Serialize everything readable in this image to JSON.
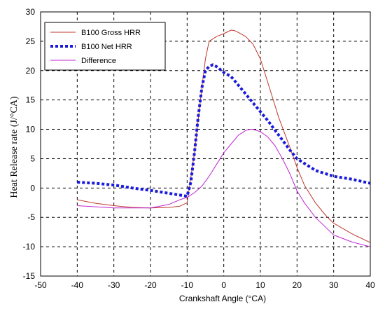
{
  "chart_data": {
    "type": "line",
    "title": "",
    "xlabel": "Crankshaft Angle  (°CA)",
    "ylabel": "Heat Release rate (J/°CA)",
    "xlim": [
      -50,
      40
    ],
    "ylim": [
      -15,
      30
    ],
    "xticks": [
      -50,
      -40,
      -30,
      -20,
      -10,
      0,
      10,
      20,
      30,
      40
    ],
    "yticks": [
      -15,
      -10,
      -5,
      0,
      5,
      10,
      15,
      20,
      25,
      30
    ],
    "grid": true,
    "legend_position": "top-left",
    "series": [
      {
        "name": "B100 Gross HRR",
        "color": "#c0392b",
        "style": "solid",
        "x": [
          -40,
          -35,
          -30,
          -25,
          -20,
          -15,
          -12,
          -10,
          -8,
          -6,
          -5,
          -4,
          -2,
          0,
          2,
          3,
          4,
          6,
          8,
          10,
          12,
          15,
          18,
          20,
          22,
          25,
          28,
          30,
          35,
          40
        ],
        "y": [
          -2,
          -2.6,
          -3.0,
          -3.3,
          -3.4,
          -3.3,
          -3.1,
          -2.5,
          6,
          17,
          22,
          25,
          25.8,
          26.3,
          26.9,
          26.8,
          26.5,
          25.8,
          24.5,
          22,
          18,
          12,
          7,
          3.5,
          0.5,
          -2.5,
          -4.8,
          -6,
          -7.8,
          -9.3
        ]
      },
      {
        "name": "B100 Net HRR",
        "color": "#1a1adc",
        "style": "dotted",
        "x": [
          -40,
          -35,
          -30,
          -25,
          -20,
          -15,
          -12,
          -10,
          -9,
          -8,
          -7,
          -6,
          -5,
          -4,
          -3,
          -2,
          0,
          2,
          4,
          6,
          8,
          10,
          12,
          15,
          18,
          20,
          25,
          30,
          35,
          40
        ],
        "y": [
          1,
          0.8,
          0.5,
          0,
          -0.4,
          -0.9,
          -1.2,
          -1.4,
          1,
          6,
          12,
          17,
          20,
          20.7,
          21,
          20.7,
          19.7,
          19,
          17.5,
          16,
          14.5,
          13,
          11.5,
          9,
          6.5,
          5,
          3,
          2,
          1.5,
          0.8
        ]
      },
      {
        "name": "Difference",
        "color": "#c026d3",
        "style": "solid",
        "x": [
          -40,
          -35,
          -30,
          -25,
          -20,
          -15,
          -12,
          -10,
          -8,
          -6,
          -4,
          -2,
          0,
          2,
          4,
          6,
          7,
          8,
          10,
          12,
          14,
          16,
          18,
          20,
          22,
          25,
          28,
          30,
          35,
          40
        ],
        "y": [
          -3,
          -3.2,
          -3.4,
          -3.4,
          -3.4,
          -2.8,
          -2.0,
          -1.6,
          -0.8,
          0.3,
          2,
          4,
          6,
          7.5,
          9,
          9.8,
          10,
          10,
          9.6,
          8.7,
          7.2,
          5,
          2.5,
          -0.5,
          -2.5,
          -5,
          -6.8,
          -8,
          -9.2,
          -10
        ]
      }
    ]
  }
}
